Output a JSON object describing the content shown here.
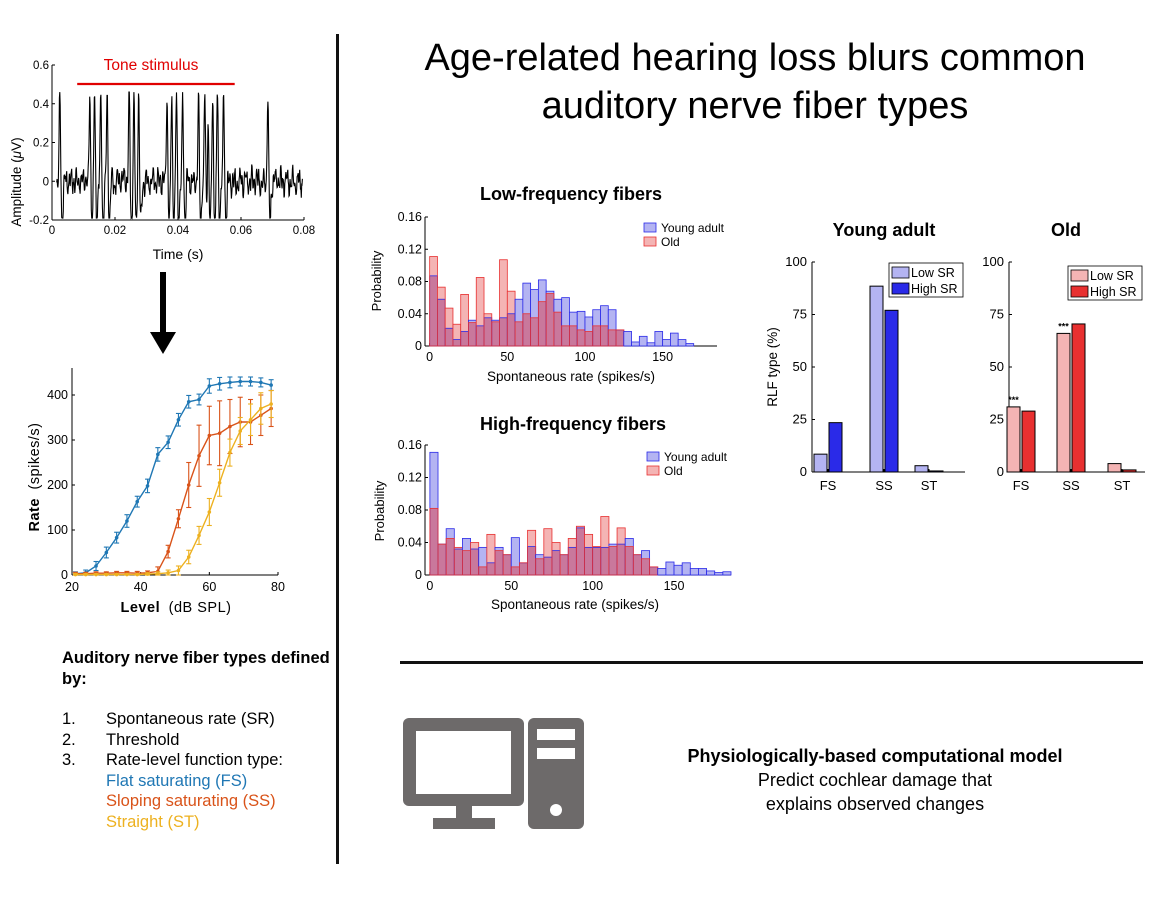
{
  "title": "Age-related hearing loss blurs common auditory nerve fiber types",
  "colors": {
    "fs": "#1f77b4",
    "ss": "#d95319",
    "st": "#edb120",
    "young": "#2a2ae8",
    "young_fill": "#b4b4f2",
    "old": "#e83030",
    "old_fill": "#f4b4b4",
    "old_mix": "#c9789c",
    "tone": "#e00000",
    "computer": "#6d6a6a"
  },
  "icons": {
    "arrow": "down-arrow-icon",
    "computer": "desktop-computer-icon"
  },
  "fiber_types": {
    "heading": "Auditory nerve fiber types defined by:",
    "items": [
      {
        "num": "1.",
        "text": "Spontaneous rate (SR)"
      },
      {
        "num": "2.",
        "text": "Threshold"
      },
      {
        "num": "3.",
        "text": "Rate-level function type:"
      }
    ],
    "subitems": [
      "Flat saturating (FS)",
      "Sloping saturating (SS)",
      "Straight (ST)"
    ]
  },
  "model": {
    "heading": "Physiologically-based computational model",
    "line1": "Predict cochlear damage that",
    "line2": "explains observed changes"
  },
  "chart_data": [
    {
      "type": "line",
      "annotation": "Tone stimulus",
      "xlabel": "Time (s)",
      "ylabel": "Amplitude (μV)",
      "xlim": [
        0,
        0.08
      ],
      "ylim": [
        -0.2,
        0.6
      ],
      "xticks": [
        "0",
        "0.02",
        "0.04",
        "0.06",
        "0.08"
      ],
      "yticks": [
        "-0.2",
        "0",
        "0.2",
        "0.4",
        "0.6"
      ],
      "tone_interval": [
        0.008,
        0.058
      ],
      "spike_times": [
        0.0025,
        0.012,
        0.0135,
        0.0155,
        0.0175,
        0.0245,
        0.026,
        0.0275,
        0.0365,
        0.038,
        0.0395,
        0.0415,
        0.0465,
        0.0485,
        0.0495,
        0.051,
        0.0525,
        0.0545,
        0.0685
      ]
    },
    {
      "type": "line",
      "xlabel_bold": "Level",
      "xlabel_unit": "(dB SPL)",
      "ylabel_bold": "Rate",
      "ylabel_unit": "(spikes/s)",
      "xlim": [
        20,
        80
      ],
      "ylim": [
        0,
        460
      ],
      "xticks": [
        "20",
        "40",
        "60",
        "80"
      ],
      "yticks": [
        "0",
        "100",
        "200",
        "300",
        "400"
      ],
      "x": [
        21,
        24,
        27,
        30,
        33,
        36,
        39,
        42,
        45,
        48,
        51,
        54,
        57,
        60,
        63,
        66,
        69,
        72,
        75,
        78
      ],
      "series": [
        {
          "name": "Flat saturating (FS)",
          "values": [
            3,
            5,
            20,
            50,
            83,
            120,
            163,
            198,
            268,
            295,
            345,
            385,
            390,
            420,
            425,
            428,
            430,
            430,
            428,
            422
          ],
          "err": [
            4,
            6,
            10,
            12,
            12,
            14,
            12,
            15,
            15,
            14,
            14,
            14,
            12,
            16,
            14,
            12,
            10,
            10,
            10,
            12
          ]
        },
        {
          "name": "Sloping saturating (SS)",
          "values": [
            3,
            3,
            4,
            4,
            5,
            5,
            4,
            5,
            8,
            52,
            125,
            200,
            265,
            310,
            315,
            330,
            340,
            340,
            355,
            370
          ],
          "err": [
            3,
            3,
            3,
            3,
            3,
            3,
            4,
            4,
            10,
            14,
            20,
            50,
            68,
            65,
            72,
            60,
            55,
            50,
            45,
            40
          ]
        },
        {
          "name": "Straight (ST)",
          "values": [
            1,
            1,
            1,
            1,
            1,
            1,
            1,
            2,
            3,
            5,
            10,
            40,
            88,
            140,
            205,
            272,
            320,
            345,
            370,
            380
          ],
          "err": [
            2,
            2,
            2,
            2,
            2,
            2,
            2,
            3,
            4,
            6,
            10,
            15,
            20,
            30,
            30,
            30,
            30,
            35,
            35,
            30
          ]
        }
      ]
    },
    {
      "type": "bar",
      "title": "Low-frequency fibers",
      "xlabel": "Spontaneous rate (spikes/s)",
      "ylabel": "Probability",
      "xlim": [
        -3,
        185
      ],
      "ylim": [
        0,
        0.16
      ],
      "xticks": [
        "0",
        "50",
        "100",
        "150"
      ],
      "yticks": [
        "0",
        "0.04",
        "0.08",
        "0.12",
        "0.16"
      ],
      "bin_width": 5,
      "bin_start": 0,
      "series": [
        {
          "name": "Young adult",
          "values": [
            0.087,
            0.058,
            0.022,
            0.008,
            0.018,
            0.032,
            0.025,
            0.035,
            0.032,
            0.035,
            0.04,
            0.058,
            0.078,
            0.07,
            0.082,
            0.068,
            0.058,
            0.06,
            0.042,
            0.043,
            0.036,
            0.045,
            0.05,
            0.045,
            0.02,
            0.018,
            0.005,
            0.012,
            0.004,
            0.018,
            0.008,
            0.016,
            0.008,
            0.003,
            0,
            0,
            0
          ]
        },
        {
          "name": "Old",
          "values": [
            0.111,
            0.073,
            0.047,
            0.027,
            0.064,
            0.029,
            0.085,
            0.04,
            0.03,
            0.107,
            0.068,
            0.03,
            0.04,
            0.035,
            0.055,
            0.065,
            0.042,
            0.025,
            0.025,
            0.02,
            0.018,
            0.025,
            0.025,
            0.02,
            0.02,
            0,
            0,
            0,
            0,
            0,
            0,
            0,
            0,
            0,
            0,
            0,
            0
          ]
        }
      ],
      "legend": "top-right"
    },
    {
      "type": "bar",
      "title": "High-frequency fibers",
      "xlabel": "Spontaneous rate (spikes/s)",
      "ylabel": "Probability",
      "xlim": [
        -3,
        185
      ],
      "ylim": [
        0,
        0.16
      ],
      "xticks": [
        "0",
        "50",
        "100",
        "150"
      ],
      "yticks": [
        "0",
        "0.04",
        "0.08",
        "0.12",
        "0.16"
      ],
      "bin_width": 5,
      "bin_start": 0,
      "series": [
        {
          "name": "Young adult",
          "values": [
            0.151,
            0.038,
            0.057,
            0.032,
            0.045,
            0.032,
            0.034,
            0.015,
            0.034,
            0.025,
            0.046,
            0.015,
            0.035,
            0.025,
            0.022,
            0.03,
            0.025,
            0.034,
            0.058,
            0.034,
            0.034,
            0.034,
            0.038,
            0.038,
            0.045,
            0.025,
            0.03,
            0.01,
            0.008,
            0.016,
            0.012,
            0.015,
            0.008,
            0.008,
            0.005,
            0.003,
            0.004
          ]
        },
        {
          "name": "Old",
          "values": [
            0.082,
            0.038,
            0.045,
            0.034,
            0.03,
            0.04,
            0.01,
            0.05,
            0.03,
            0.025,
            0.01,
            0.015,
            0.055,
            0.02,
            0.057,
            0.04,
            0.025,
            0.045,
            0.06,
            0.05,
            0.035,
            0.072,
            0.035,
            0.058,
            0.035,
            0.025,
            0.02,
            0.01,
            0,
            0,
            0,
            0,
            0,
            0,
            0,
            0,
            0
          ]
        }
      ],
      "legend": "top-right"
    },
    {
      "type": "bar",
      "title": "Young adult",
      "ylabel": "RLF type (%)",
      "ylim": [
        0,
        100
      ],
      "yticks": [
        "0",
        "25",
        "50",
        "75",
        "100"
      ],
      "categories": [
        "FS",
        "SS",
        "ST"
      ],
      "series": [
        {
          "name": "Low SR",
          "values": [
            8.5,
            88.5,
            3
          ]
        },
        {
          "name": "High SR",
          "values": [
            23.5,
            77,
            0.5
          ]
        }
      ],
      "legend": "top-right"
    },
    {
      "type": "bar",
      "title": "Old",
      "ylim": [
        0,
        100
      ],
      "yticks": [
        "0",
        "25",
        "50",
        "75",
        "100"
      ],
      "categories": [
        "FS",
        "SS",
        "ST"
      ],
      "series": [
        {
          "name": "Low SR",
          "values": [
            31,
            66,
            4
          ]
        },
        {
          "name": "High SR",
          "values": [
            29,
            70.5,
            1
          ]
        }
      ],
      "annotations": [
        "***",
        "***"
      ],
      "legend": "top-right"
    }
  ]
}
